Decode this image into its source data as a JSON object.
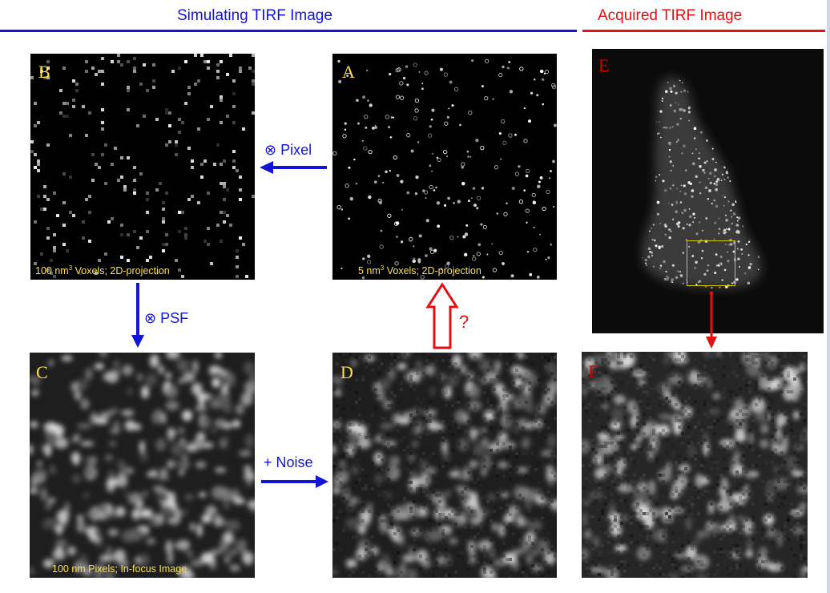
{
  "colors": {
    "simulating": "#1313d9",
    "acquired": "#e60f0f",
    "panel_letter_sim": "#ffe14a",
    "panel_letter_acq": "#d40000",
    "caption": "#ffe14a",
    "roi": "#d8c800"
  },
  "header": {
    "simulating_title": "Simulating TIRF Image",
    "acquired_title": "Acquired TIRF Image"
  },
  "panels": {
    "A": {
      "letter": "A",
      "caption_pre": "5 nm",
      "caption_sup": "3",
      "caption_post": " Voxels; 2D-projection"
    },
    "B": {
      "letter": "B",
      "caption_pre": "100 nm",
      "caption_sup": "3",
      "caption_post": " Voxels; 2D-projection"
    },
    "C": {
      "letter": "C",
      "caption": "100 nm Pixels; In-focus Image"
    },
    "D": {
      "letter": "D"
    },
    "E": {
      "letter": "E"
    },
    "F": {
      "letter": "F"
    }
  },
  "operations": {
    "pixel": "⊗ Pixel",
    "psf": "⊗ PSF",
    "noise": "+ Noise",
    "question": "?"
  }
}
